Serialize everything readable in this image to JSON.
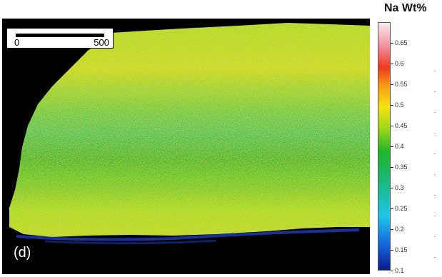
{
  "panel_label": "(d)",
  "scale_bar": {
    "left_label": "0",
    "right_label": "500"
  },
  "colorbar": {
    "title": "Na Wt%",
    "min": 0.1,
    "max": 0.7,
    "ticks": [
      "0.65",
      "0.6",
      "0.55",
      "0.5",
      "0.45",
      "0.4",
      "0.35",
      "0.3",
      "0.25",
      "0.2",
      "0.15",
      "0.1"
    ],
    "colors": [
      "#0a1a8a",
      "#1565d8",
      "#22c4ea",
      "#1ab87a",
      "#23b52a",
      "#a8d81a",
      "#f3e214",
      "#f6a214",
      "#ef3a1e",
      "#ef8a9a",
      "#fcecf0"
    ]
  },
  "map": {
    "background_color": "#000000",
    "dominant_colors": [
      "#23b52a",
      "#a8d81a",
      "#f3e214",
      "#f6a214",
      "#ef3a1e",
      "#22c4ea",
      "#1ab87a"
    ]
  }
}
